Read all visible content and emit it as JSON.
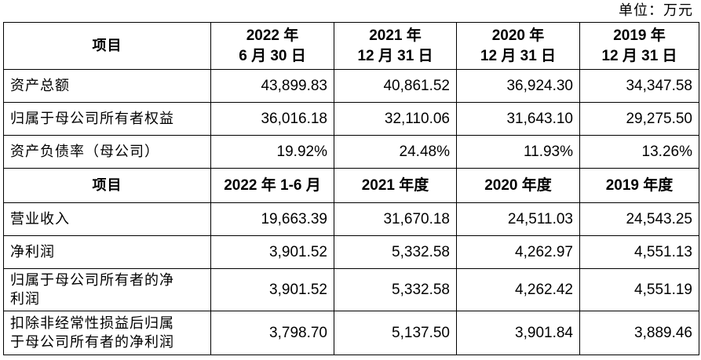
{
  "unit_label": "单位：万元",
  "balance_header": {
    "item_label": "项目",
    "columns": [
      {
        "line1": "2022 年",
        "line2": "6 月 30 日"
      },
      {
        "line1": "2021 年",
        "line2": "12 月 31 日"
      },
      {
        "line1": "2020 年",
        "line2": "12 月 31 日"
      },
      {
        "line1": "2019 年",
        "line2": "12 月 31 日"
      }
    ]
  },
  "balance_rows": [
    {
      "label": "资产总额",
      "values": [
        "43,899.83",
        "40,861.52",
        "36,924.30",
        "34,347.58"
      ]
    },
    {
      "label": "归属于母公司所有者权益",
      "values": [
        "36,016.18",
        "32,110.06",
        "31,643.10",
        "29,275.50"
      ]
    },
    {
      "label": "资产负债率（母公司）",
      "values": [
        "19.92%",
        "24.48%",
        "11.93%",
        "13.26%"
      ]
    }
  ],
  "income_header": {
    "item_label": "项目",
    "columns": [
      "2022 年 1-6 月",
      "2021 年度",
      "2020 年度",
      "2019 年度"
    ]
  },
  "income_rows": [
    {
      "label": "营业收入",
      "values": [
        "19,663.39",
        "31,670.18",
        "24,511.03",
        "24,543.25"
      ]
    },
    {
      "label": "净利润",
      "values": [
        "3,901.52",
        "5,332.58",
        "4,262.97",
        "4,551.13"
      ]
    },
    {
      "label_line1": "归属于母公司所有者的净",
      "label_line2": "利润",
      "values": [
        "3,901.52",
        "5,332.58",
        "4,262.42",
        "4,551.19"
      ]
    },
    {
      "label_line1": "扣除非经常性损益后归属",
      "label_line2": "于母公司所有者的净利润",
      "values": [
        "3,798.70",
        "5,137.50",
        "3,901.84",
        "3,889.46"
      ]
    }
  ]
}
